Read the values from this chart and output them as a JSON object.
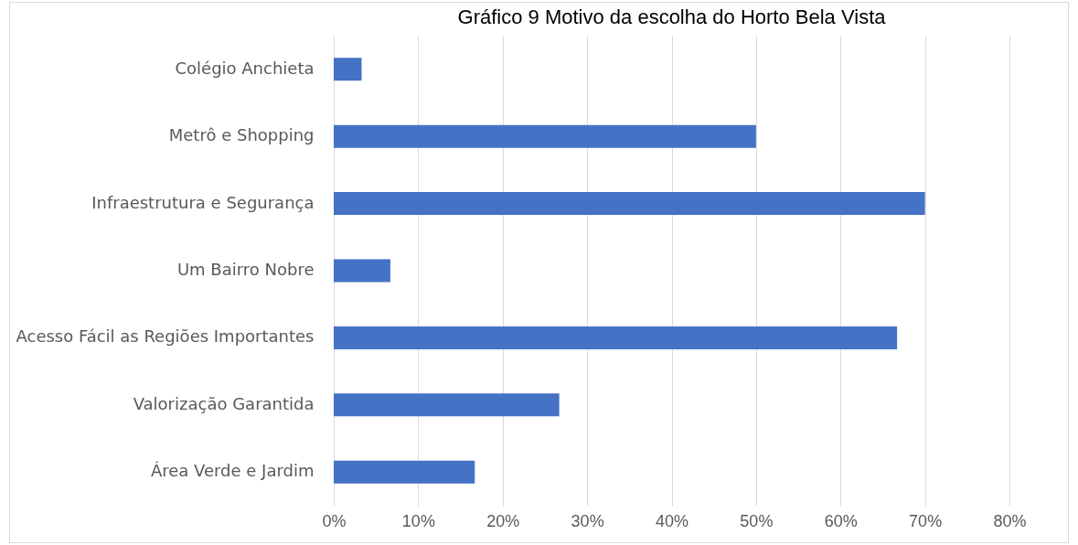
{
  "chart_data": {
    "type": "bar",
    "orientation": "horizontal",
    "title": "Gráfico 9 Motivo da escolha do Horto Bela Vista",
    "categories": [
      "Colégio Anchieta",
      "Metrô e Shopping ",
      "Infraestrutura e Segurança",
      "Um Bairro Nobre",
      "Acesso Fácil as Regiões Importantes",
      "Valorização Garantida",
      "Área Verde e Jardim"
    ],
    "values": [
      3.3,
      50,
      70,
      6.7,
      66.7,
      26.7,
      16.7
    ],
    "color": "#4472c4",
    "xlim": [
      0,
      80
    ],
    "xticks": [
      {
        "value": 0,
        "label": "0%"
      },
      {
        "value": 10,
        "label": "10%"
      },
      {
        "value": 20,
        "label": "20%"
      },
      {
        "value": 30,
        "label": "30%"
      },
      {
        "value": 40,
        "label": "40%"
      },
      {
        "value": 50,
        "label": "50%"
      },
      {
        "value": 60,
        "label": "60%"
      },
      {
        "value": 70,
        "label": "70%"
      },
      {
        "value": 80,
        "label": "80%"
      }
    ],
    "grid": "x"
  }
}
